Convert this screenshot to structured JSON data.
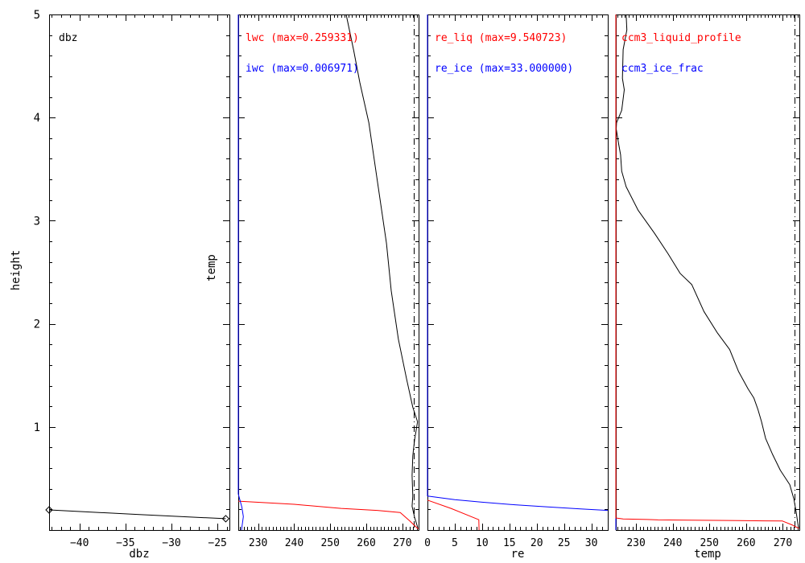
{
  "figure": {
    "background": "#ffffff",
    "ylabel": "height",
    "ylim": [
      0,
      5
    ],
    "yticks": [
      {
        "v": 1,
        "label": "1"
      },
      {
        "v": 2,
        "label": "2"
      },
      {
        "v": 3,
        "label": "3"
      },
      {
        "v": 4,
        "label": "4"
      },
      {
        "v": 5,
        "label": "5"
      }
    ],
    "y_minor_step": 0.2,
    "colors": {
      "black": "#000000",
      "red": "#ff0000",
      "blue": "#0000ff"
    }
  },
  "chart_data": [
    {
      "type": "line",
      "inside_label": "dbz",
      "xlabel": "dbz",
      "side_label": "",
      "xlim": [
        -43.3,
        -23.7
      ],
      "xticks": [
        {
          "v": -40,
          "label": "−40"
        },
        {
          "v": -35,
          "label": "−35"
        },
        {
          "v": -30,
          "label": "−30"
        },
        {
          "v": -25,
          "label": "−25"
        }
      ],
      "minor_step": 1,
      "refline_x": null,
      "legend": [],
      "series": [
        {
          "name": "dbz_profile",
          "color": "#000000",
          "marker": "diamond-ends",
          "points": [
            [
              -43.3,
              0.195
            ],
            [
              -33.5,
              0.15
            ],
            [
              -24.1,
              0.11
            ]
          ]
        }
      ]
    },
    {
      "type": "line",
      "inside_label": "",
      "xlabel": "",
      "side_label": "temp",
      "xlim": [
        224.5,
        274.5
      ],
      "xticks": [
        {
          "v": 230,
          "label": "230"
        },
        {
          "v": 240,
          "label": "240"
        },
        {
          "v": 250,
          "label": "250"
        },
        {
          "v": 260,
          "label": "260"
        },
        {
          "v": 270,
          "label": "270"
        }
      ],
      "minor_step": 1,
      "refline_x": 273.15,
      "legend": [
        {
          "text": "lwc (max=0.259331)",
          "color": "#ff0000",
          "max": 0.259331
        },
        {
          "text": "iwc (max=0.006971)",
          "color": "#0000ff",
          "max": 0.006971
        }
      ],
      "series": [
        {
          "name": "temp_profile",
          "color": "#000000",
          "marker": null,
          "points": [
            [
              254.4,
              5.0
            ],
            [
              256.5,
              4.65
            ],
            [
              258.2,
              4.34
            ],
            [
              260.7,
              3.95
            ],
            [
              263.3,
              3.33
            ],
            [
              265.6,
              2.78
            ],
            [
              266.9,
              2.32
            ],
            [
              268.9,
              1.85
            ],
            [
              271.2,
              1.46
            ],
            [
              272.9,
              1.19
            ],
            [
              274.2,
              1.05
            ],
            [
              273.4,
              0.88
            ],
            [
              272.9,
              0.72
            ],
            [
              272.7,
              0.53
            ],
            [
              272.9,
              0.33
            ],
            [
              272.7,
              0.23
            ],
            [
              273.4,
              0.12
            ],
            [
              274.3,
              0.02
            ]
          ]
        },
        {
          "name": "lwc_scaled",
          "color": "#ff0000",
          "marker": null,
          "points": [
            [
              224.5,
              0.28
            ],
            [
              240,
              0.25
            ],
            [
              253,
              0.21
            ],
            [
              263,
              0.19
            ],
            [
              269.4,
              0.17
            ],
            [
              272,
              0.09
            ],
            [
              274.4,
              0.01
            ]
          ]
        },
        {
          "name": "iwc_scaled",
          "color": "#0000ff",
          "marker": null,
          "points": [
            [
              224.5,
              5.0
            ],
            [
              224.5,
              0.35
            ],
            [
              225.5,
              0.22
            ],
            [
              225.9,
              0.13
            ],
            [
              225.6,
              0.05
            ],
            [
              225.4,
              0.0
            ]
          ]
        }
      ]
    },
    {
      "type": "line",
      "inside_label": "",
      "xlabel": "re",
      "side_label": "",
      "xlim": [
        0,
        33
      ],
      "xticks": [
        {
          "v": 0,
          "label": "0"
        },
        {
          "v": 5,
          "label": "5"
        },
        {
          "v": 10,
          "label": "10"
        },
        {
          "v": 15,
          "label": "15"
        },
        {
          "v": 20,
          "label": "20"
        },
        {
          "v": 25,
          "label": "25"
        },
        {
          "v": 30,
          "label": "30"
        }
      ],
      "minor_step": 1,
      "refline_x": null,
      "legend": [
        {
          "text": "re_liq (max=9.540723)",
          "color": "#ff0000",
          "max": 9.540723
        },
        {
          "text": "re_ice (max=33.000000)",
          "color": "#0000ff",
          "max": 33.0
        }
      ],
      "series": [
        {
          "name": "re_liq",
          "color": "#ff0000",
          "marker": null,
          "points": [
            [
              0,
              0.29
            ],
            [
              4.3,
              0.21
            ],
            [
              9.4,
              0.1
            ],
            [
              9.45,
              0.0
            ]
          ]
        },
        {
          "name": "re_ice",
          "color": "#0000ff",
          "marker": null,
          "points": [
            [
              0,
              5.0
            ],
            [
              0,
              0.33
            ],
            [
              5,
              0.295
            ],
            [
              10,
              0.27
            ],
            [
              16,
              0.245
            ],
            [
              22,
              0.225
            ],
            [
              28,
              0.205
            ],
            [
              33,
              0.19
            ]
          ]
        }
      ]
    },
    {
      "type": "line",
      "inside_label": "",
      "xlabel": "temp",
      "side_label": "",
      "xlim": [
        224.5,
        274.5
      ],
      "xticks": [
        {
          "v": 230,
          "label": "230"
        },
        {
          "v": 240,
          "label": "240"
        },
        {
          "v": 250,
          "label": "250"
        },
        {
          "v": 260,
          "label": "260"
        },
        {
          "v": 270,
          "label": "270"
        }
      ],
      "minor_step": 1,
      "refline_x": 273.15,
      "legend": [
        {
          "text": "ccm3_liquid_profile",
          "color": "#ff0000"
        },
        {
          "text": "ccm3_ice_frac",
          "color": "#0000ff"
        }
      ],
      "series": [
        {
          "name": "temp_profile",
          "color": "#000000",
          "marker": null,
          "points": [
            [
              227.3,
              5.0
            ],
            [
              227.5,
              4.85
            ],
            [
              226.5,
              4.66
            ],
            [
              226.3,
              4.38
            ],
            [
              226.8,
              4.27
            ],
            [
              226.1,
              4.07
            ],
            [
              224.7,
              3.95
            ],
            [
              224.6,
              3.89
            ],
            [
              225.3,
              3.74
            ],
            [
              225.8,
              3.64
            ],
            [
              226.1,
              3.48
            ],
            [
              227.3,
              3.33
            ],
            [
              230.6,
              3.1
            ],
            [
              235.0,
              2.88
            ],
            [
              238.7,
              2.68
            ],
            [
              242.0,
              2.49
            ],
            [
              245.2,
              2.38
            ],
            [
              248.5,
              2.12
            ],
            [
              252.2,
              1.91
            ],
            [
              255.5,
              1.75
            ],
            [
              257.9,
              1.54
            ],
            [
              260.5,
              1.37
            ],
            [
              262.1,
              1.28
            ],
            [
              263.2,
              1.17
            ],
            [
              264.2,
              1.05
            ],
            [
              265.3,
              0.89
            ],
            [
              267.1,
              0.74
            ],
            [
              269.3,
              0.58
            ],
            [
              271.9,
              0.44
            ],
            [
              273.0,
              0.3
            ],
            [
              273.6,
              0.18
            ],
            [
              274.1,
              0.06
            ],
            [
              274.3,
              0.02
            ]
          ]
        },
        {
          "name": "ccm3_ice_frac_scaled",
          "color": "#0000ff",
          "marker": null,
          "points": [
            [
              224.5,
              5.0
            ],
            [
              224.5,
              0.0
            ]
          ]
        },
        {
          "name": "ccm3_liquid_profile_scaled",
          "color": "#ff0000",
          "marker": null,
          "points": [
            [
              224.5,
              5.0
            ],
            [
              224.5,
              0.117
            ],
            [
              226.5,
              0.107
            ],
            [
              233,
              0.102
            ],
            [
              236,
              0.098
            ],
            [
              248,
              0.094
            ],
            [
              258,
              0.091
            ],
            [
              265,
              0.089
            ],
            [
              269.9,
              0.087
            ],
            [
              272.5,
              0.05
            ],
            [
              274.4,
              0.015
            ]
          ]
        }
      ]
    }
  ]
}
